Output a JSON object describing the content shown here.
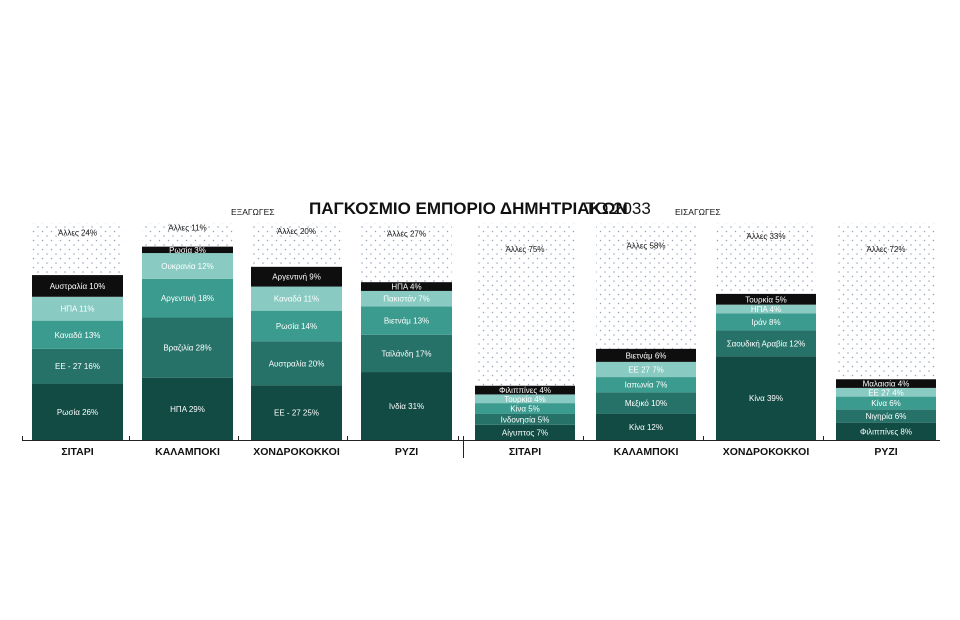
{
  "header": {
    "title_bold": "ΠΑΓΚΟΣΜΙΟ ΕΜΠΟΡΙΟ ΔΗΜΗΤΡΙΑΚΩΝ",
    "title_year": "ΤΟ 2033",
    "left_panel_label": "ΕΞΑΓΩΓΕΣ",
    "right_panel_label": "ΕΙΣΑΓΩΓΕΣ"
  },
  "chart_data": [
    {
      "type": "bar",
      "stacked": true,
      "panel": "ΕΞΑΓΩΓΕΣ",
      "unit": "%",
      "categories": [
        "ΣΙΤΑΡΙ",
        "ΚΑΛΑΜΠΟΚΙ",
        "ΧΟΝΔΡΟΚΟΚΚΟΙ",
        "ΡΥΖΙ"
      ],
      "stacks": [
        {
          "category": "ΣΙΤΑΡΙ",
          "segments": [
            {
              "label": "Ρωσία 26%",
              "value": 26,
              "color": "#114b44"
            },
            {
              "label": "ΕΕ  - 27 16%",
              "value": 16,
              "color": "#267269"
            },
            {
              "label": "Καναδά 13%",
              "value": 13,
              "color": "#3c9b8f"
            },
            {
              "label": "ΗΠΑ 11%",
              "value": 11,
              "color": "#89cbc2"
            },
            {
              "label": "Αυστραλία 10%",
              "value": 10,
              "color": "#0e0e0e"
            },
            {
              "label": "Άλλες 24%",
              "value": 24,
              "color": "dots"
            }
          ]
        },
        {
          "category": "ΚΑΛΑΜΠΟΚΙ",
          "segments": [
            {
              "label": "ΗΠΑ  29%",
              "value": 29,
              "color": "#114b44"
            },
            {
              "label": "Βραζιλία 28%",
              "value": 28,
              "color": "#267269"
            },
            {
              "label": "Αργεντινή 18%",
              "value": 18,
              "color": "#3c9b8f"
            },
            {
              "label": "Ουκρανία 12%",
              "value": 12,
              "color": "#89cbc2"
            },
            {
              "label": "Ρωσία  3%",
              "value": 3,
              "color": "#0e0e0e"
            },
            {
              "label": "Άλλες 11%",
              "value": 11,
              "color": "dots"
            }
          ]
        },
        {
          "category": "ΧΟΝΔΡΟΚΟΚΚΟΙ",
          "segments": [
            {
              "label": "ΕΕ  - 27 25%",
              "value": 25,
              "color": "#114b44"
            },
            {
              "label": "Αυστραλία  20%",
              "value": 20,
              "color": "#267269"
            },
            {
              "label": "Ρωσία  14%",
              "value": 14,
              "color": "#3c9b8f"
            },
            {
              "label": "Καναδά  11%",
              "value": 11,
              "color": "#89cbc2"
            },
            {
              "label": "Αργεντινή  9%",
              "value": 9,
              "color": "#0e0e0e"
            },
            {
              "label": "Άλλες 20%",
              "value": 20,
              "color": "dots"
            }
          ]
        },
        {
          "category": "ΡΥΖΙ",
          "segments": [
            {
              "label": "Ινδία 31%",
              "value": 31,
              "color": "#114b44"
            },
            {
              "label": "Ταϊλάνδη 17%",
              "value": 17,
              "color": "#267269"
            },
            {
              "label": "Βιετνάμ 13%",
              "value": 13,
              "color": "#3c9b8f"
            },
            {
              "label": "Πακιστάν 7%",
              "value": 7,
              "color": "#89cbc2"
            },
            {
              "label": "ΗΠΑ 4%",
              "value": 4,
              "color": "#0e0e0e"
            },
            {
              "label": "Άλλες 27%",
              "value": 27,
              "color": "dots"
            }
          ]
        }
      ]
    },
    {
      "type": "bar",
      "stacked": true,
      "panel": "ΕΙΣΑΓΩΓΕΣ",
      "unit": "%",
      "categories": [
        "ΣΙΤΑΡΙ",
        "ΚΑΛΑΜΠΟΚΙ",
        "ΧΟΝΔΡΟΚΟΚΚΟΙ",
        "ΡΥΖΙ"
      ],
      "stacks": [
        {
          "category": "ΣΙΤΑΡΙ",
          "segments": [
            {
              "label": "Αίγυπτος 7%",
              "value": 7,
              "color": "#114b44"
            },
            {
              "label": "Ινδονησία 5%",
              "value": 5,
              "color": "#267269"
            },
            {
              "label": "Κίνα 5%",
              "value": 5,
              "color": "#3c9b8f"
            },
            {
              "label": "Τουρκία 4%",
              "value": 4,
              "color": "#89cbc2"
            },
            {
              "label": "Φιλιππίνες 4%",
              "value": 4,
              "color": "#0e0e0e"
            },
            {
              "label": "Άλλες 75%",
              "value": 75,
              "color": "dots"
            }
          ]
        },
        {
          "category": "ΚΑΛΑΜΠΟΚΙ",
          "segments": [
            {
              "label": "Κίνα 12%",
              "value": 12,
              "color": "#114b44"
            },
            {
              "label": "Μεξικό 10%",
              "value": 10,
              "color": "#267269"
            },
            {
              "label": "Ιαπωνία 7%",
              "value": 7,
              "color": "#3c9b8f"
            },
            {
              "label": "ΕΕ 27 7%",
              "value": 7,
              "color": "#89cbc2"
            },
            {
              "label": "Βιετνάμ  6%",
              "value": 6,
              "color": "#0e0e0e"
            },
            {
              "label": "Άλλες 58%",
              "value": 58,
              "color": "dots"
            }
          ]
        },
        {
          "category": "ΧΟΝΔΡΟΚΟΚΚΟΙ",
          "segments": [
            {
              "label": "Κίνα 39%",
              "value": 39,
              "color": "#114b44"
            },
            {
              "label": "Σαουδική Αραβία 12%",
              "value": 12,
              "color": "#267269"
            },
            {
              "label": "Ιράν 8%",
              "value": 8,
              "color": "#3c9b8f"
            },
            {
              "label": "ΗΠΑ 4%",
              "value": 4,
              "color": "#89cbc2"
            },
            {
              "label": "Τουρκία 5%",
              "value": 5,
              "color": "#0e0e0e"
            },
            {
              "label": "Άλλες 33%",
              "value": 33,
              "color": "dots"
            }
          ]
        },
        {
          "category": "ΡΥΖΙ",
          "segments": [
            {
              "label": "Φιλιππίνες 8%",
              "value": 8,
              "color": "#114b44"
            },
            {
              "label": "Νιγηρία 6%",
              "value": 6,
              "color": "#267269"
            },
            {
              "label": "Κίνα  6%",
              "value": 6,
              "color": "#3c9b8f"
            },
            {
              "label": "ΕΕ 27 4%",
              "value": 4,
              "color": "#89cbc2"
            },
            {
              "label": "Μαλαισία 4%",
              "value": 4,
              "color": "#0e0e0e"
            },
            {
              "label": "Άλλες 72%",
              "value": 72,
              "color": "dots"
            }
          ]
        }
      ]
    }
  ]
}
